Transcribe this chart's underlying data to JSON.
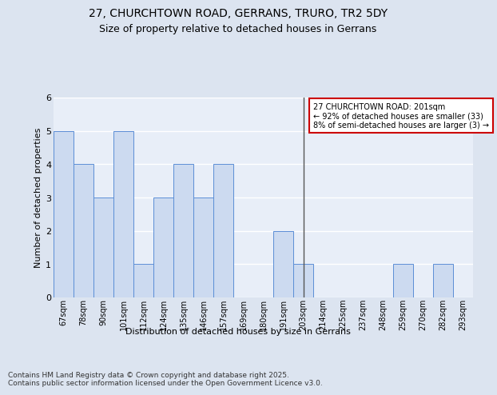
{
  "title_line1": "27, CHURCHTOWN ROAD, GERRANS, TRURO, TR2 5DY",
  "title_line2": "Size of property relative to detached houses in Gerrans",
  "xlabel": "Distribution of detached houses by size in Gerrans",
  "ylabel": "Number of detached properties",
  "footer": "Contains HM Land Registry data © Crown copyright and database right 2025.\nContains public sector information licensed under the Open Government Licence v3.0.",
  "categories": [
    "67sqm",
    "78sqm",
    "90sqm",
    "101sqm",
    "112sqm",
    "124sqm",
    "135sqm",
    "146sqm",
    "157sqm",
    "169sqm",
    "180sqm",
    "191sqm",
    "203sqm",
    "214sqm",
    "225sqm",
    "237sqm",
    "248sqm",
    "259sqm",
    "270sqm",
    "282sqm",
    "293sqm"
  ],
  "values": [
    5,
    4,
    3,
    5,
    1,
    3,
    4,
    3,
    4,
    0,
    0,
    2,
    1,
    0,
    0,
    0,
    0,
    1,
    0,
    1,
    0
  ],
  "bar_color": "#ccdaf0",
  "bar_edge_color": "#5b8ed6",
  "highlight_index": 12,
  "highlight_line_color": "#555555",
  "annotation_box_text": "27 CHURCHTOWN ROAD: 201sqm\n← 92% of detached houses are smaller (33)\n8% of semi-detached houses are larger (3) →",
  "annotation_box_edge_color": "#cc0000",
  "annotation_box_face_color": "#ffffff",
  "ylim": [
    0,
    6
  ],
  "yticks": [
    0,
    1,
    2,
    3,
    4,
    5,
    6
  ],
  "bg_color": "#dce4f0",
  "plot_bg_color": "#e8eef8",
  "grid_color": "#ffffff",
  "title_fontsize": 10,
  "subtitle_fontsize": 9,
  "axis_label_fontsize": 8,
  "tick_fontsize": 7,
  "footer_fontsize": 6.5,
  "annot_fontsize": 7
}
